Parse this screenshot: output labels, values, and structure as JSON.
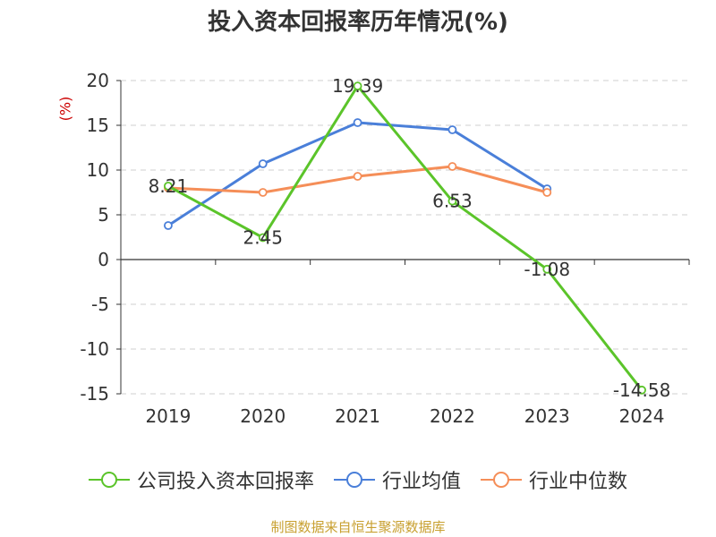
{
  "title": "投入资本回报率历年情况(%)",
  "unit_label": "(%)",
  "source": "制图数据来自恒生聚源数据库",
  "chart_data": {
    "type": "line",
    "categories": [
      "2019",
      "2020",
      "2021",
      "2022",
      "2023",
      "2024"
    ],
    "ylim": [
      -15,
      20
    ],
    "yticks": [
      20,
      15,
      10,
      5,
      0,
      -5,
      -10,
      -15
    ],
    "ytick_labels": [
      "20",
      "15",
      "10",
      "5",
      "0",
      "-5",
      "-10",
      "-15"
    ],
    "grid": true,
    "legend_position": "bottom",
    "series": [
      {
        "name": "公司投入资本回报率",
        "color": "#5bc42a",
        "values": [
          8.21,
          2.45,
          19.39,
          6.53,
          -1.08,
          -14.58
        ],
        "labels": [
          "8.21",
          "2.45",
          "19.39",
          "6.53",
          "-1.08",
          "-14.58"
        ]
      },
      {
        "name": "行业均值",
        "color": "#4a7fd9",
        "values": [
          3.8,
          10.7,
          15.3,
          14.5,
          7.9,
          null
        ]
      },
      {
        "name": "行业中位数",
        "color": "#f58e58",
        "values": [
          8.0,
          7.5,
          9.3,
          10.4,
          7.5,
          null
        ]
      }
    ]
  }
}
